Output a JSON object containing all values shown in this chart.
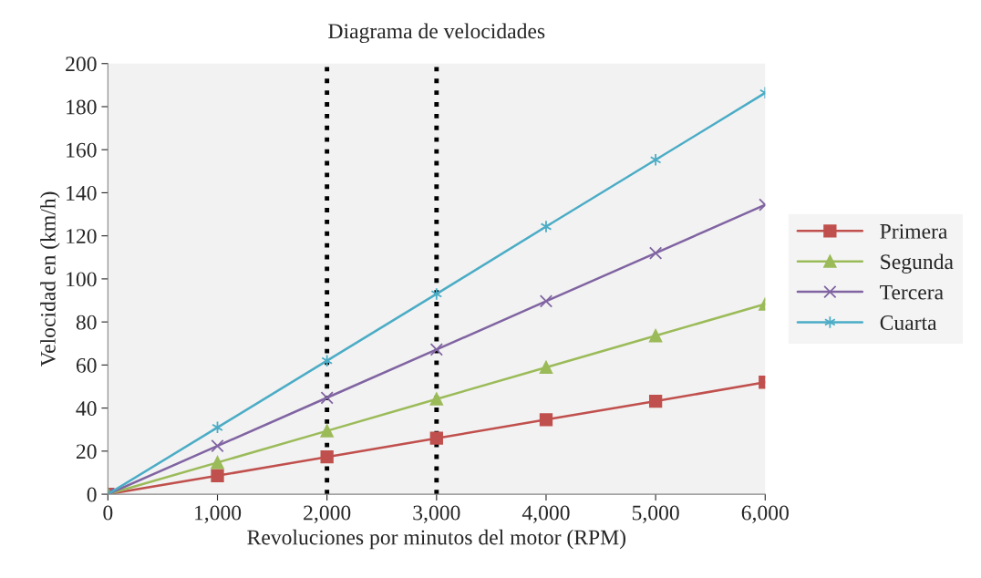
{
  "chart_data": {
    "type": "line",
    "title": "Diagrama de velocidades",
    "xlabel": "Revoluciones por minutos del motor (RPM)",
    "ylabel": "Velocidad en (km/h)",
    "x": [
      0,
      1000,
      2000,
      3000,
      4000,
      5000,
      6000
    ],
    "series": [
      {
        "name": "Primera",
        "color": "#c0504d",
        "marker": "square",
        "values": [
          0,
          8.6,
          17.3,
          26,
          34.6,
          43.2,
          52
        ]
      },
      {
        "name": "Segunda",
        "color": "#9bbb59",
        "marker": "triangle",
        "values": [
          0,
          14.7,
          29.4,
          44.2,
          58.9,
          73.6,
          88.3
        ]
      },
      {
        "name": "Tercera",
        "color": "#8064a2",
        "marker": "cross",
        "values": [
          0,
          22.4,
          44.8,
          67.2,
          89.6,
          112,
          134.4
        ]
      },
      {
        "name": "Cuarta",
        "color": "#4bacc6",
        "marker": "cross",
        "values": [
          0,
          31,
          62,
          93,
          124.3,
          155.3,
          186.4
        ]
      }
    ],
    "xlim": [
      0,
      6000
    ],
    "ylim": [
      0,
      200
    ],
    "xticks": [
      0,
      {
        "value": 1000,
        "label": "1,000"
      },
      {
        "value": 2000,
        "label": "2,000"
      },
      {
        "value": 3000,
        "label": "3,000"
      },
      {
        "value": 4000,
        "label": "4,000"
      },
      {
        "value": 5000,
        "label": "5,000"
      },
      {
        "value": 6000,
        "label": "6,000"
      }
    ],
    "yticks": [
      0,
      20,
      40,
      60,
      80,
      100,
      120,
      140,
      160,
      180,
      200
    ],
    "ref_lines": [
      {
        "axis": "x",
        "value": 2000,
        "color": "#000000",
        "line_style": "dotted"
      },
      {
        "axis": "x",
        "value": 3000,
        "color": "#000000",
        "line_style": "dotted"
      }
    ],
    "grid": false,
    "legend": "right",
    "line_style": "solid"
  }
}
